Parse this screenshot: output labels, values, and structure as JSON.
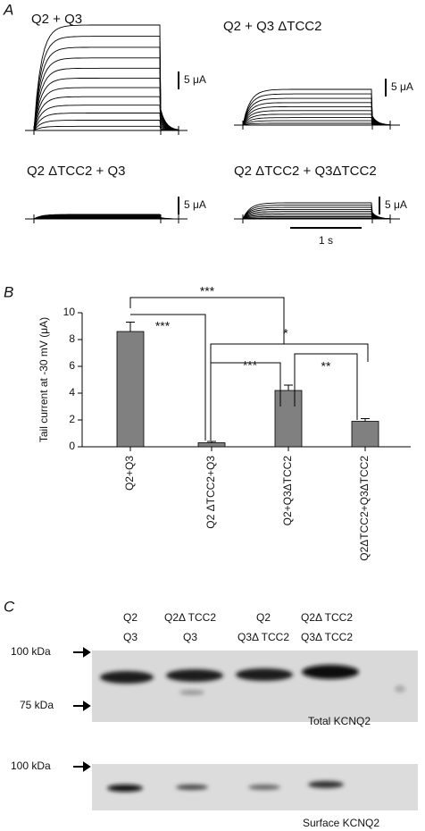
{
  "panel_a": {
    "label": "A",
    "traces": [
      {
        "title": "Q2 + Q3",
        "scale": "5 μA"
      },
      {
        "title": "Q2 + Q3 ΔTCC2",
        "scale": "5 μA"
      },
      {
        "title": "Q2 ΔTCC2 + Q3",
        "scale": "5 μA"
      },
      {
        "title": "Q2 ΔTCC2 + Q3ΔTCC2",
        "scale": "5 μA"
      }
    ],
    "time_scale": "1 s"
  },
  "chart_data": {
    "type": "bar",
    "panel_label": "B",
    "y_label": "Tail current at -30 mV (μA)",
    "categories": [
      "Q2+Q3",
      "Q2 ΔTCC2+Q3",
      "Q2+Q3ΔTCC2",
      "Q2ΔTCC2+Q3ΔTCC2"
    ],
    "values": [
      8.6,
      0.3,
      4.2,
      1.9
    ],
    "errors": [
      0.7,
      0.1,
      0.4,
      0.2
    ],
    "color": "#808080",
    "ylim": [
      0,
      10
    ],
    "yticks": [
      0,
      2,
      4,
      6,
      8,
      10
    ],
    "annotations": [
      "***",
      "***",
      "***",
      "*",
      "**"
    ]
  },
  "panel_c": {
    "label": "C",
    "columns": [
      [
        "Q2",
        "Q3"
      ],
      [
        "Q2Δ TCC2",
        "Q3"
      ],
      [
        "Q2",
        "Q3Δ TCC2"
      ],
      [
        "Q2Δ TCC2",
        "Q3Δ TCC2"
      ]
    ],
    "markers": [
      "100 kDa",
      "75 kDa",
      "100 kDa"
    ],
    "blots": [
      "Total KCNQ2",
      "Surface KCNQ2"
    ]
  }
}
